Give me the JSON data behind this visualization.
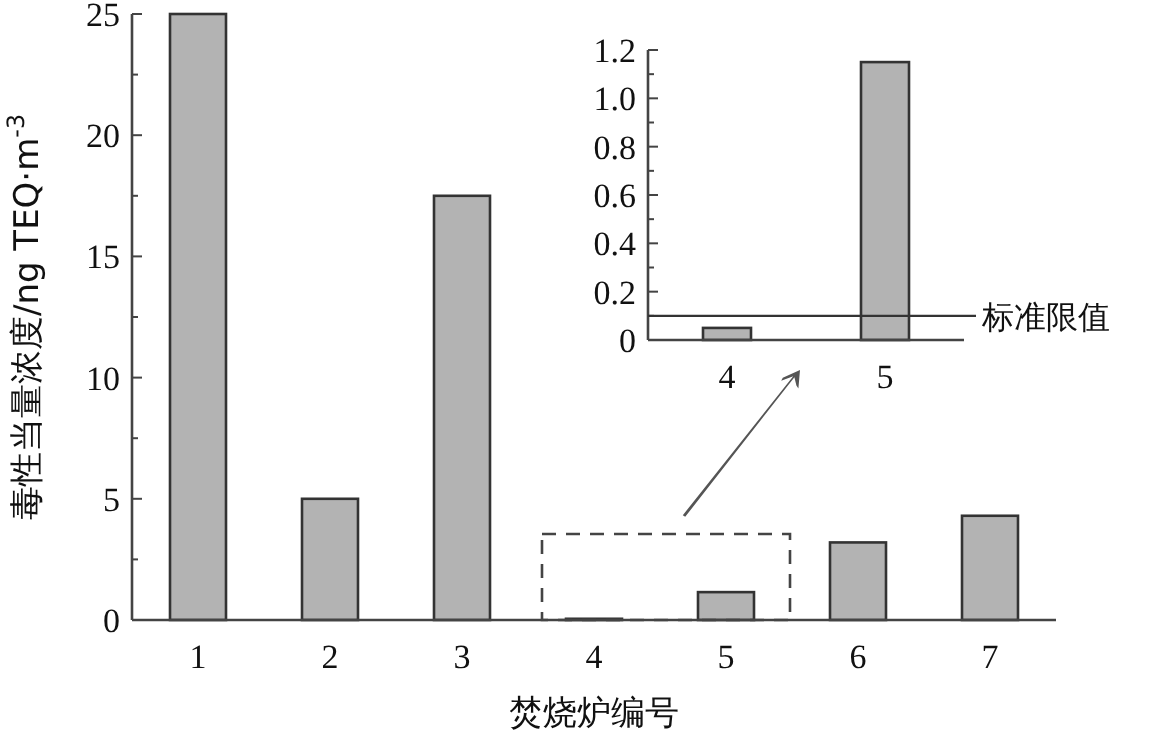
{
  "chart_data": [
    {
      "type": "bar",
      "xlabel": "焚烧炉编号",
      "ylabel": "毒性当量浓度/ng TEQ·m$^{-3}$",
      "categories": [
        "1",
        "2",
        "3",
        "4",
        "5",
        "6",
        "7"
      ],
      "values": [
        25,
        5.0,
        17.5,
        0.05,
        1.15,
        3.2,
        4.3
      ],
      "color": "#b3b3b3",
      "ylim": [
        0,
        25
      ],
      "yticks": [
        0,
        {
          "value": 2.5,
          "label": null
        },
        5,
        {
          "value": 7.5,
          "label": null
        },
        10,
        {
          "value": 12.5,
          "label": null
        },
        15,
        {
          "value": 17.5,
          "label": null
        },
        20,
        {
          "value": 22.5,
          "label": null
        },
        25
      ]
    },
    {
      "type": "bar",
      "categories": [
        "4",
        "5"
      ],
      "values": [
        0.05,
        1.15
      ],
      "color": "#b3b3b3",
      "ylim": [
        0,
        1.2
      ],
      "yticks": [
        0,
        {
          "value": 0.1,
          "label": null
        },
        0.2,
        {
          "value": 0.3,
          "label": null
        },
        0.4,
        {
          "value": 0.5,
          "label": null
        },
        0.6,
        {
          "value": 0.7,
          "label": null
        },
        0.8,
        {
          "value": 0.9,
          "label": null
        },
        {
          "value": 1,
          "label": "1.0"
        },
        {
          "value": 1.1,
          "label": null
        },
        1.2
      ],
      "ref_lines": [
        {
          "axis": "y",
          "value": 0.1,
          "label": "标准限值"
        }
      ]
    }
  ]
}
